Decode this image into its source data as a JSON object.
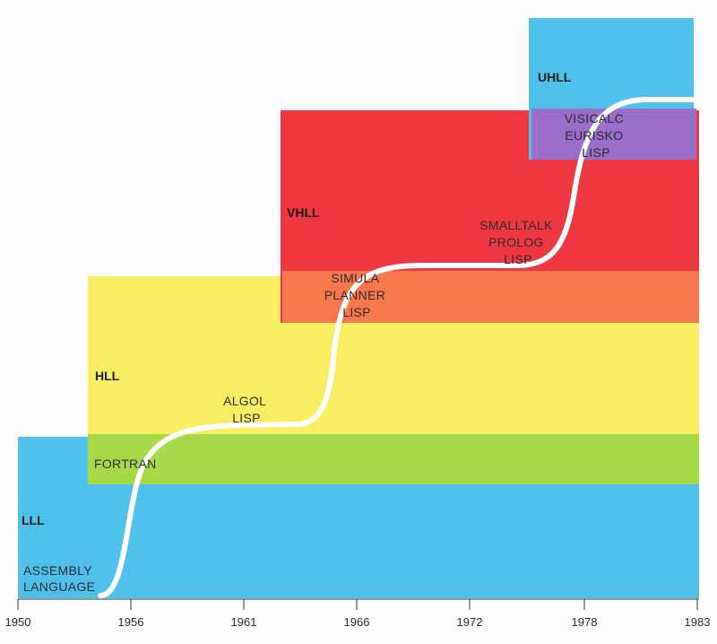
{
  "colors": {
    "lll": "#4fc1ea",
    "hll": "#f9ee61",
    "vhll": "#ee3740",
    "uhll": "#4fc1ea",
    "overlap_lll_hll": "#a7da49",
    "overlap_hll_vhll": "#f7784c",
    "overlap_vhll_uhll": "#9a6ec9",
    "curve": "#ffffff"
  },
  "levels": {
    "lll": "LLL",
    "hll": "HLL",
    "vhll": "VHLL",
    "uhll": "UHLL"
  },
  "examples": {
    "assembly": [
      "ASSEMBLY",
      "LANGUAGE"
    ],
    "fortran": [
      "FORTRAN"
    ],
    "algol": [
      "ALGOL",
      "LISP"
    ],
    "simula": [
      "SIMULA",
      "PLANNER",
      "LISP"
    ],
    "smalltalk": [
      "SMALLTALK",
      "PROLOG",
      "LISP"
    ],
    "visicalc": [
      "VISICALC",
      "EURISKO",
      "LISP"
    ]
  },
  "axis": {
    "ticks": [
      "1950",
      "1956",
      "1961",
      "1966",
      "1972",
      "1978",
      "1983"
    ]
  }
}
